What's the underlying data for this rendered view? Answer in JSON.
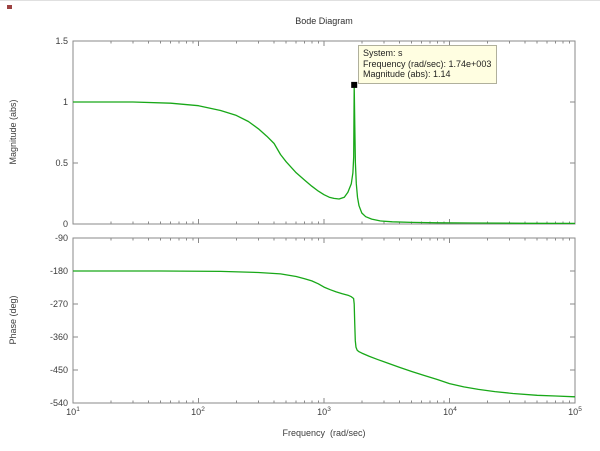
{
  "title": "Bode Diagram",
  "xlabel": "Frequency  (rad/sec)",
  "x_axis": {
    "scale": "log",
    "ticks": [
      {
        "base": "10",
        "exp": "1"
      },
      {
        "base": "10",
        "exp": "2"
      },
      {
        "base": "10",
        "exp": "3"
      },
      {
        "base": "10",
        "exp": "4"
      },
      {
        "base": "10",
        "exp": "5"
      }
    ]
  },
  "magnitude_plot": {
    "ylabel": "Magnitude (abs)",
    "yticks": [
      "1.5",
      "1",
      "0.5",
      "0"
    ],
    "ylim": [
      0,
      1.5
    ]
  },
  "phase_plot": {
    "ylabel": "Phase (deg)",
    "yticks": [
      "-90",
      "-180",
      "-270",
      "-360",
      "-450",
      "-540"
    ],
    "ylim": [
      -540,
      -90
    ]
  },
  "datatip": {
    "lines": [
      "System: s",
      "Frequency (rad/sec): 1.74e+003",
      "Magnitude (abs): 1.14"
    ]
  },
  "marker": {
    "frequency": 1740,
    "magnitude": 1.14
  },
  "colors": {
    "curve": "#18a818",
    "axis": "#8a8a8a",
    "label_text": "#3c3c3c",
    "datatip_bg": "#fffee1",
    "datatip_border": "#b0b09c",
    "marker": "#000000"
  },
  "chart_data": [
    {
      "type": "line",
      "title": "Bode Diagram",
      "xlabel": "Frequency (rad/sec)",
      "ylabel": "Magnitude (abs)",
      "xscale": "log",
      "xlim": [
        10,
        100000
      ],
      "ylim": [
        0,
        1.5
      ],
      "grid": false,
      "series": [
        {
          "name": "magnitude",
          "x": [
            10,
            30,
            60,
            100,
            150,
            200,
            250,
            300,
            350,
            400,
            450,
            500,
            600,
            700,
            800,
            900,
            1000,
            1100,
            1200,
            1320,
            1450,
            1550,
            1650,
            1700,
            1725,
            1740,
            1760,
            1780,
            1810,
            1850,
            1900,
            2000,
            2150,
            2400,
            2800,
            3500,
            5000,
            8000,
            15000,
            40000,
            100000
          ],
          "y": [
            1.0,
            1.0,
            0.99,
            0.97,
            0.93,
            0.89,
            0.84,
            0.78,
            0.72,
            0.66,
            0.57,
            0.51,
            0.42,
            0.36,
            0.31,
            0.27,
            0.24,
            0.22,
            0.21,
            0.205,
            0.22,
            0.26,
            0.33,
            0.42,
            0.55,
            1.14,
            0.8,
            0.5,
            0.33,
            0.22,
            0.15,
            0.09,
            0.06,
            0.04,
            0.025,
            0.018,
            0.013,
            0.01,
            0.008,
            0.006,
            0.005
          ]
        }
      ],
      "annotations": [
        {
          "type": "datatip",
          "x": 1740,
          "y": 1.14,
          "text": [
            "System: s",
            "Frequency (rad/sec): 1.74e+003",
            "Magnitude (abs): 1.14"
          ]
        }
      ]
    },
    {
      "type": "line",
      "xlabel": "Frequency (rad/sec)",
      "ylabel": "Phase (deg)",
      "xscale": "log",
      "xlim": [
        10,
        100000
      ],
      "ylim": [
        -540,
        -90
      ],
      "grid": false,
      "series": [
        {
          "name": "phase",
          "x": [
            10,
            50,
            150,
            300,
            450,
            600,
            700,
            800,
            900,
            1000,
            1120,
            1250,
            1400,
            1550,
            1650,
            1720,
            1740,
            1755,
            1775,
            1800,
            1840,
            1900,
            2000,
            2300,
            2700,
            3200,
            4000,
            5000,
            6300,
            8000,
            10000,
            13000,
            17000,
            23000,
            32000,
            50000,
            70000,
            100000
          ],
          "y": [
            -180,
            -180,
            -181,
            -184,
            -188,
            -195,
            -201,
            -207,
            -215,
            -224,
            -231,
            -237,
            -242,
            -246,
            -250,
            -255,
            -270,
            -320,
            -370,
            -388,
            -396,
            -400,
            -404,
            -413,
            -422,
            -431,
            -443,
            -454,
            -465,
            -476,
            -487,
            -496,
            -503,
            -509,
            -514,
            -519,
            -521,
            -523
          ]
        }
      ]
    }
  ]
}
